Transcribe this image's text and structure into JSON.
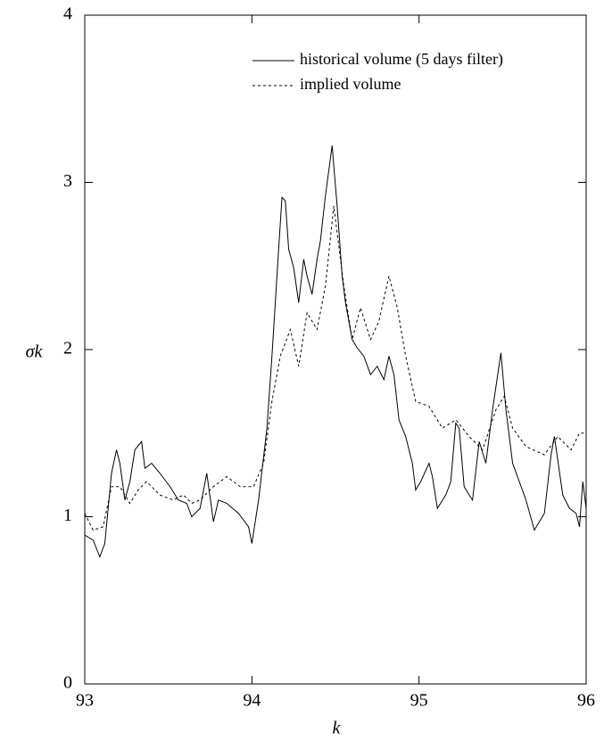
{
  "chart_data": {
    "type": "line",
    "x_label": "k",
    "y_label": "σk",
    "xlim": [
      93,
      96
    ],
    "xticks": [
      93,
      94,
      95,
      96
    ],
    "ylim": [
      0,
      4
    ],
    "yticks": [
      0,
      1,
      2,
      3,
      4
    ],
    "legend": "upper right",
    "series": [
      {
        "name": "historical volume (5 days filter)",
        "color": "#000000",
        "dash": "solid",
        "x": [
          93.0,
          93.05,
          93.09,
          93.12,
          93.16,
          93.19,
          93.21,
          93.24,
          93.27,
          93.3,
          93.34,
          93.36,
          93.4,
          93.45,
          93.51,
          93.56,
          93.61,
          93.64,
          93.69,
          93.73,
          93.77,
          93.8,
          93.85,
          93.92,
          93.98,
          94.0,
          94.04,
          94.09,
          94.12,
          94.16,
          94.18,
          94.2,
          94.22,
          94.25,
          94.28,
          94.31,
          94.33,
          94.36,
          94.39,
          94.41,
          94.44,
          94.48,
          94.51,
          94.54,
          94.56,
          94.6,
          94.63,
          94.67,
          94.71,
          94.75,
          94.79,
          94.82,
          94.85,
          94.88,
          94.92,
          94.96,
          94.98,
          95.01,
          95.06,
          95.08,
          95.11,
          95.16,
          95.19,
          95.22,
          95.24,
          95.27,
          95.3,
          95.32,
          95.36,
          95.4,
          95.44,
          95.49,
          95.52,
          95.56,
          95.64,
          95.69,
          95.75,
          95.79,
          95.81,
          95.86,
          95.9,
          95.94,
          95.96,
          95.98,
          96.0
        ],
        "values": [
          0.89,
          0.86,
          0.76,
          0.84,
          1.26,
          1.4,
          1.32,
          1.1,
          1.21,
          1.4,
          1.45,
          1.29,
          1.32,
          1.26,
          1.18,
          1.1,
          1.08,
          1.0,
          1.05,
          1.26,
          0.97,
          1.1,
          1.08,
          1.02,
          0.94,
          0.84,
          1.1,
          1.53,
          1.96,
          2.6,
          2.91,
          2.89,
          2.6,
          2.49,
          2.28,
          2.54,
          2.44,
          2.33,
          2.54,
          2.65,
          2.92,
          3.22,
          2.86,
          2.44,
          2.28,
          2.06,
          2.01,
          1.96,
          1.85,
          1.9,
          1.82,
          1.96,
          1.85,
          1.58,
          1.48,
          1.32,
          1.16,
          1.21,
          1.32,
          1.24,
          1.05,
          1.13,
          1.21,
          1.56,
          1.53,
          1.18,
          1.13,
          1.1,
          1.45,
          1.32,
          1.64,
          1.98,
          1.64,
          1.32,
          1.1,
          0.92,
          1.02,
          1.37,
          1.48,
          1.13,
          1.05,
          1.02,
          0.94,
          1.21,
          1.05
        ]
      },
      {
        "name": "implied volume",
        "color": "#000000",
        "dash": "dashed",
        "x": [
          93.0,
          93.05,
          93.11,
          93.16,
          93.21,
          93.27,
          93.32,
          93.37,
          93.45,
          93.53,
          93.59,
          93.64,
          93.69,
          93.77,
          93.85,
          93.93,
          94.01,
          94.07,
          94.12,
          94.17,
          94.23,
          94.28,
          94.33,
          94.39,
          94.44,
          94.49,
          94.55,
          94.6,
          94.65,
          94.71,
          94.76,
          94.82,
          94.87,
          94.92,
          94.98,
          95.06,
          95.14,
          95.22,
          95.3,
          95.38,
          95.46,
          95.51,
          95.56,
          95.64,
          95.75,
          95.83,
          95.91,
          95.96,
          96.0
        ],
        "values": [
          1.02,
          0.92,
          0.94,
          1.18,
          1.18,
          1.08,
          1.16,
          1.21,
          1.13,
          1.1,
          1.13,
          1.08,
          1.1,
          1.18,
          1.24,
          1.18,
          1.18,
          1.32,
          1.69,
          1.96,
          2.12,
          1.9,
          2.22,
          2.12,
          2.38,
          2.86,
          2.38,
          2.06,
          2.25,
          2.06,
          2.17,
          2.44,
          2.25,
          1.96,
          1.69,
          1.66,
          1.53,
          1.58,
          1.48,
          1.4,
          1.64,
          1.72,
          1.53,
          1.42,
          1.37,
          1.48,
          1.4,
          1.5,
          1.5
        ]
      }
    ]
  }
}
